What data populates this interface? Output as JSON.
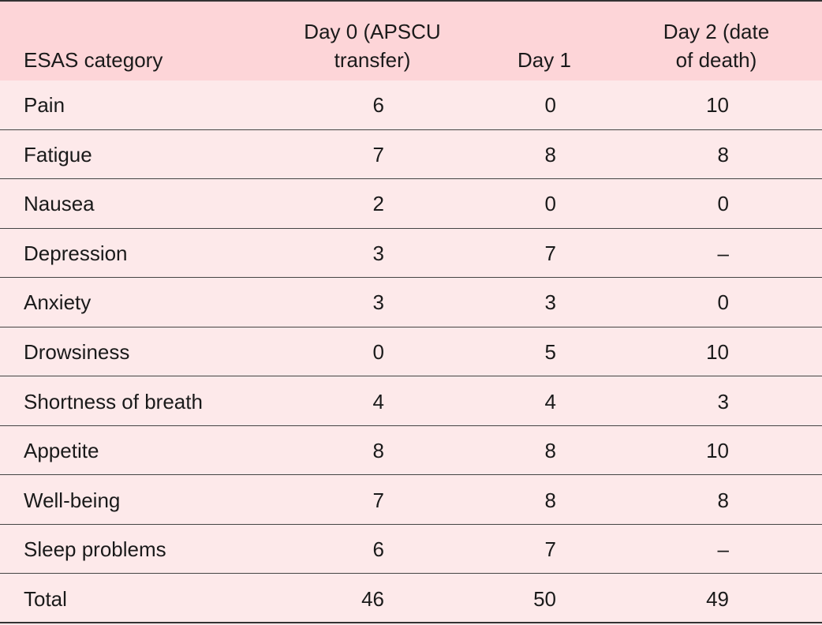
{
  "table": {
    "header": [
      "ESAS category",
      "Day 0 (APSCU transfer)",
      "Day 1",
      "Day 2 (date of death)"
    ],
    "rows": [
      [
        "Pain",
        6,
        0,
        10
      ],
      [
        "Fatigue",
        7,
        8,
        8
      ],
      [
        "Nausea",
        2,
        0,
        0
      ],
      [
        "Depression",
        3,
        7,
        "–"
      ],
      [
        "Anxiety",
        3,
        3,
        0
      ],
      [
        "Drowsiness",
        0,
        5,
        10
      ],
      [
        "Shortness of breath",
        4,
        4,
        3
      ],
      [
        "Appetite",
        8,
        8,
        10
      ],
      [
        "Well-being",
        7,
        8,
        8
      ],
      [
        "Sleep problems",
        6,
        7,
        "–"
      ],
      [
        "Total",
        46,
        50,
        49
      ]
    ]
  }
}
